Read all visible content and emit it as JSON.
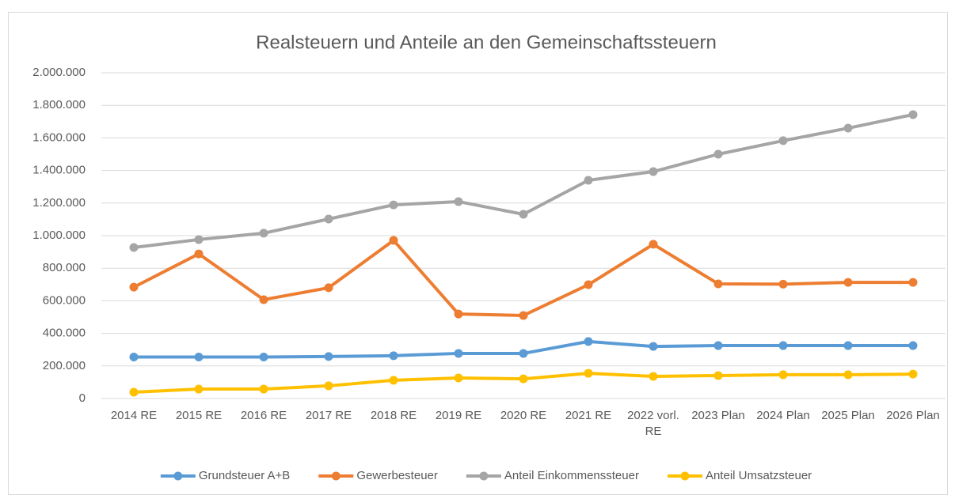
{
  "chart_data": {
    "type": "line",
    "title": "Realsteuern und Anteile an den Gemeinschaftssteuern",
    "categories": [
      "2014 RE",
      "2015 RE",
      "2016 RE",
      "2017 RE",
      "2018  RE",
      "2019 RE",
      "2020 RE",
      "2021 RE",
      "2022 vorl. RE",
      "2023 Plan",
      "2024 Plan",
      "2025 Plan",
      "2026 Plan"
    ],
    "series": [
      {
        "name": "Grundsteuer A+B",
        "color": "#5b9bd5",
        "values": [
          255000,
          255000,
          255000,
          258000,
          263000,
          277000,
          277000,
          350000,
          320000,
          325000,
          325000,
          325000,
          325000
        ]
      },
      {
        "name": "Gewerbesteuer",
        "color": "#ed7d31",
        "values": [
          684000,
          888000,
          607000,
          680000,
          971000,
          519000,
          510000,
          699000,
          947000,
          704000,
          702000,
          713000,
          713000
        ]
      },
      {
        "name": "Anteil Einkommenssteuer",
        "color": "#a5a5a5",
        "values": [
          927000,
          976000,
          1015000,
          1102000,
          1189000,
          1209000,
          1131000,
          1340000,
          1393000,
          1500000,
          1583000,
          1660000,
          1743000
        ]
      },
      {
        "name": "Anteil Umsatzsteuer",
        "color": "#ffc000",
        "values": [
          39000,
          58000,
          58000,
          78000,
          112000,
          126000,
          121000,
          155000,
          136000,
          141000,
          146000,
          146000,
          150000
        ]
      }
    ],
    "ylim": [
      0,
      2000000
    ],
    "yticks": [
      0,
      {
        "value": 200000,
        "label": "200.000"
      },
      {
        "value": 400000,
        "label": "400.000"
      },
      {
        "value": 600000,
        "label": "600.000"
      },
      {
        "value": 800000,
        "label": "800.000"
      },
      {
        "value": 1000000,
        "label": "1.000.000"
      },
      {
        "value": 1200000,
        "label": "1.200.000"
      },
      {
        "value": 1400000,
        "label": "1.400.000"
      },
      {
        "value": 1600000,
        "label": "1.600.000"
      },
      {
        "value": 1800000,
        "label": "1.800.000"
      },
      {
        "value": 2000000,
        "label": "2.000.000"
      }
    ],
    "grid": true,
    "legend": "bottom"
  }
}
